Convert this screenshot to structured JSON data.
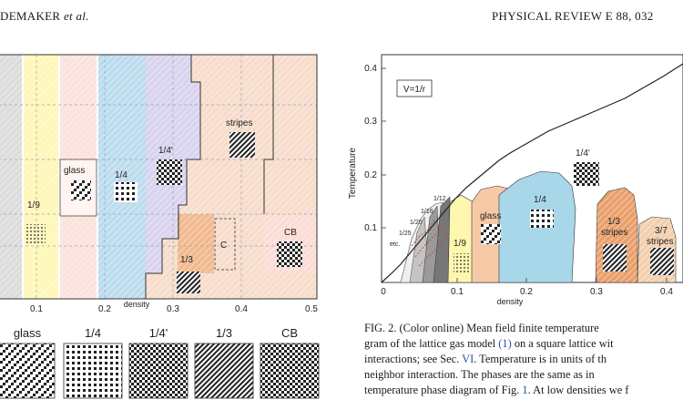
{
  "header": {
    "left_author": "DEMAKER",
    "left_etal": "et al.",
    "right_journal": "PHYSICAL REVIEW E 88, 032"
  },
  "left_figure": {
    "x_ticks": [
      "0.1",
      "0.2",
      "0.3",
      "0.4",
      "0.5"
    ],
    "xlabel": "density",
    "region_labels": {
      "one_ninth": "1/9",
      "glass": "glass",
      "quarter": "1/4",
      "quarter_prime": "1/4'",
      "stripes": "stripes",
      "third": "1/3",
      "c": "C",
      "cb": "CB"
    },
    "patterns": [
      "glass",
      "1/4",
      "1/4'",
      "1/3",
      "CB"
    ]
  },
  "right_figure": {
    "legend": "V=1/r",
    "ylabel": "Temperature",
    "xlabel": "density",
    "x_ticks": [
      "0",
      "0.1",
      "0.2",
      "0.3",
      "0.4"
    ],
    "y_ticks": [
      "0.1",
      "0.2",
      "0.3",
      "0.4"
    ],
    "phase_labels": {
      "quarter_prime": "1/4'",
      "quarter": "1/4",
      "glass": "glass",
      "one_ninth": "1/9",
      "third": "1/3",
      "third_stripes": "stripes",
      "three_sevenths": "3/7",
      "three_sevenths_stripes": "stripes",
      "twelfth": "1/12",
      "sixteenth": "1/16",
      "twentieth": "1/20",
      "twentyfifth": "1/25",
      "etc": "etc."
    }
  },
  "caption": {
    "line1": "FIG. 2. (Color online) Mean field finite temperature",
    "line2_a": "gram of the lattice gas model ",
    "line2_ref": "(1)",
    "line2_b": " on a square lattice wit",
    "line3_a": "interactions; see Sec. ",
    "line3_ref": "VI",
    "line3_b": ". Temperature is in units of th",
    "line4": "neighbor interaction. The phases are the same as in",
    "line5_a": "temperature phase diagram of Fig. ",
    "line5_ref": "1",
    "line5_b": ". At low densities we f"
  }
}
